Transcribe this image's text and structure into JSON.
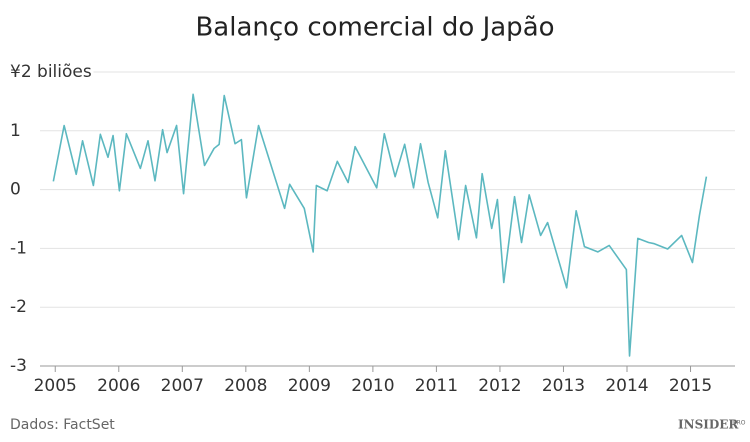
{
  "chart_data": {
    "type": "line",
    "title": "Balanço comercial do Japão",
    "source": "Dados: FactSet",
    "logo": {
      "text": "INSIDER",
      "suffix": "PRO"
    },
    "x": [
      2004.97,
      2005.14,
      2005.33,
      2005.43,
      2005.6,
      2005.71,
      2005.83,
      2005.91,
      2006.01,
      2006.12,
      2006.34,
      2006.46,
      2006.57,
      2006.69,
      2006.76,
      2006.91,
      2007.02,
      2007.17,
      2007.35,
      2007.5,
      2007.58,
      2007.66,
      2007.83,
      2007.93,
      2008.01,
      2008.2,
      2008.61,
      2008.69,
      2008.92,
      2009.06,
      2009.11,
      2009.28,
      2009.44,
      2009.61,
      2009.72,
      2010.06,
      2010.18,
      2010.35,
      2010.5,
      2010.64,
      2010.75,
      2010.87,
      2011.02,
      2011.14,
      2011.35,
      2011.46,
      2011.63,
      2011.72,
      2011.87,
      2011.96,
      2012.06,
      2012.23,
      2012.34,
      2012.46,
      2012.64,
      2012.75,
      2013.05,
      2013.2,
      2013.33,
      2013.54,
      2013.72,
      2013.99,
      2014.04,
      2014.17,
      2014.34,
      2014.43,
      2014.64,
      2014.86,
      2015.03,
      2015.14,
      2015.25
    ],
    "series": [
      {
        "color": "#5cb8c0",
        "values": [
          0.14,
          1.09,
          0.26,
          0.83,
          0.07,
          0.94,
          0.55,
          0.92,
          -0.02,
          0.95,
          0.36,
          0.83,
          0.15,
          1.02,
          0.63,
          1.09,
          -0.07,
          1.62,
          0.41,
          0.7,
          0.77,
          1.6,
          0.78,
          0.85,
          -0.14,
          1.09,
          -0.32,
          0.09,
          -0.32,
          -1.06,
          0.07,
          -0.02,
          0.48,
          0.12,
          0.73,
          0.03,
          0.95,
          0.22,
          0.77,
          0.03,
          0.78,
          0.12,
          -0.48,
          0.66,
          -0.85,
          0.07,
          -0.82,
          0.27,
          -0.66,
          -0.17,
          -1.58,
          -0.12,
          -0.9,
          -0.09,
          -0.78,
          -0.56,
          -1.67,
          -0.36,
          -0.97,
          -1.06,
          -0.95,
          -1.36,
          -2.83,
          -0.83,
          -0.9,
          -0.92,
          -1.01,
          -0.78,
          -1.24,
          -0.44,
          0.22
        ]
      }
    ],
    "xlim": [
      2004.76,
      2015.7
    ],
    "xticks": [
      2005,
      2006,
      2007,
      2008,
      2009,
      2010,
      2011,
      2012,
      2013,
      2014,
      2015
    ],
    "ylim": [
      -3,
      2
    ],
    "yticks": [
      -3,
      -2,
      -1,
      0,
      1,
      {
        "value": 2,
        "label": "¥2 biliões"
      }
    ],
    "grid": true
  }
}
